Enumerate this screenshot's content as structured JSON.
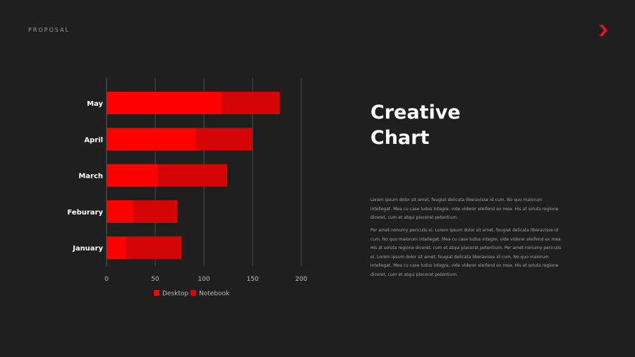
{
  "header": {
    "label": "PROPOSAL"
  },
  "logo": {
    "icon": "chevron-right-icon",
    "color": "#e3161f"
  },
  "content": {
    "title": "Creative\nChart",
    "paragraph1": "Lorem ipsum dolor sit amet, feugiat delicata liberavisse id cum. No quo maiorum intellegat. Mea cu case ludus integre, vide viderer eleifend ex mea. His at soluta regione diceret, cum et atqui placerat petentium.",
    "paragraph2": "Per amet nonumy periculis ei. Lorem ipsum dolor sit amet, feugiat delicata liberavisse id cum. No quo maiorum intellegat. Mea cu case ludus integre, vide viderer eleifend ex mea. His at soluta regione diceret, cum et atqui placerat petentium. Per amet nonumy periculis ei. Lorem ipsum dolor sit amet, feugiat delicata liberavisse id cum. No quo maiorum intellegat. Mea cu case ludus integre, vide viderer eleifend ex mea. His at soluta regione diceret, cum et atqui placerat petentium."
  },
  "chart_data": {
    "type": "bar",
    "orientation": "horizontal",
    "stacked": true,
    "categories": [
      "May",
      "April",
      "March",
      "Feburary",
      "January"
    ],
    "series": [
      {
        "name": "Desktop",
        "values": [
          118,
          92,
          53,
          28,
          20
        ],
        "color": "#ff0000"
      },
      {
        "name": "Notebook",
        "values": [
          60,
          58,
          71,
          45,
          57
        ],
        "color": "#d40505"
      }
    ],
    "xticks": [
      0,
      50,
      100,
      150,
      200
    ],
    "xlim": [
      0,
      200
    ],
    "grid": true,
    "legend_position": "bottom"
  }
}
